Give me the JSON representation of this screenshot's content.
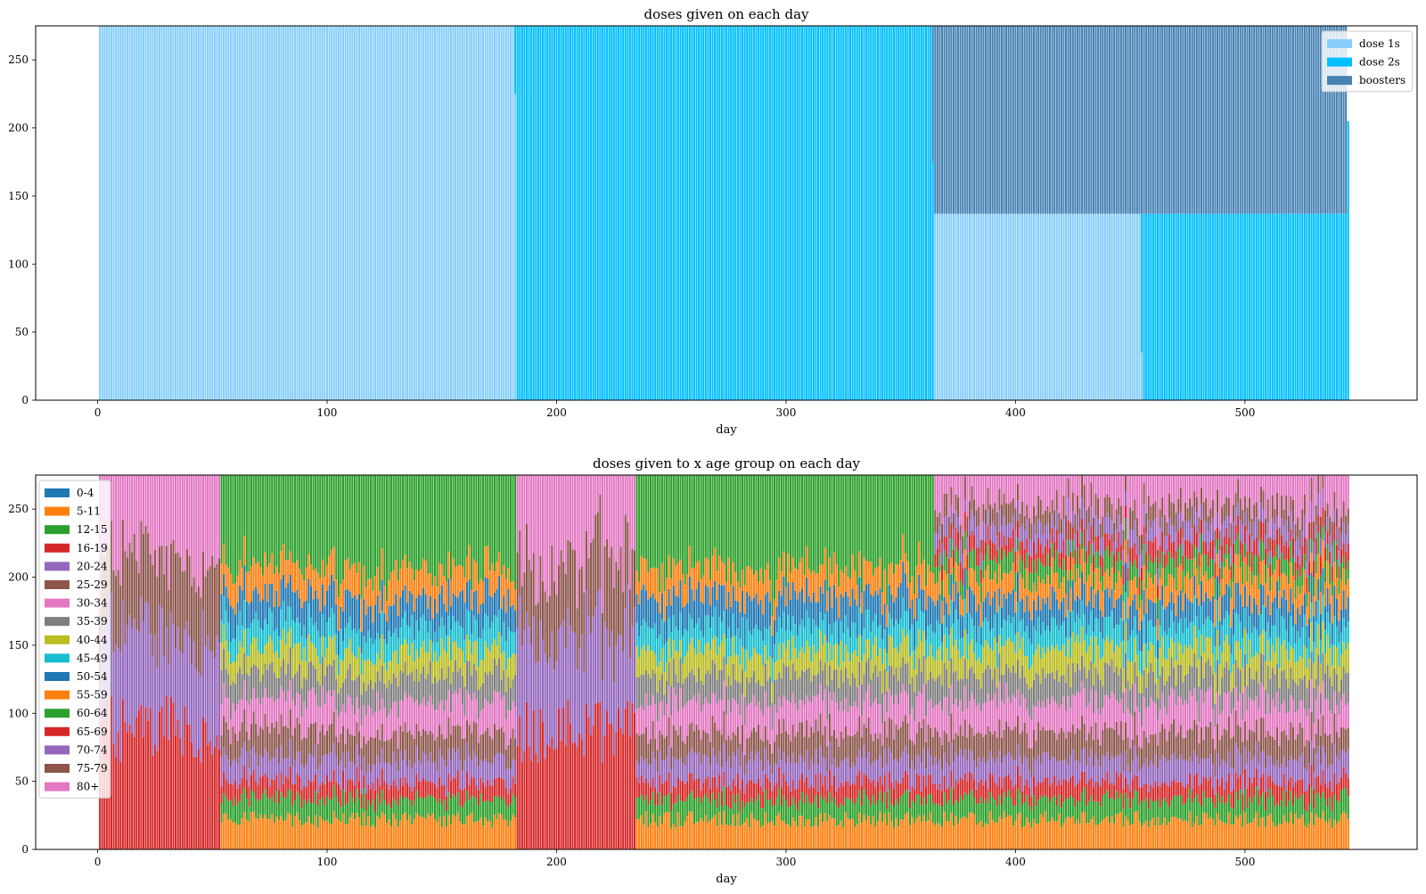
{
  "figure": {
    "background": "#ffffff"
  },
  "chart_data": [
    {
      "type": "bar",
      "stacked": true,
      "title": "doses given on each day",
      "xlabel": "day",
      "ylabel": "",
      "xlim": [
        -27,
        575
      ],
      "ylim": [
        0,
        275
      ],
      "xticks": [
        0,
        100,
        200,
        300,
        400,
        500
      ],
      "yticks": [
        0,
        50,
        100,
        150,
        200,
        250
      ],
      "grid": false,
      "legend_position": "upper right",
      "series": [
        {
          "name": "dose 1s",
          "color": "#87cefa"
        },
        {
          "name": "dose 2s",
          "color": "#00bfff"
        },
        {
          "name": "boosters",
          "color": "#4682b4"
        }
      ],
      "segments": [
        {
          "days": [
            1,
            183
          ],
          "values": {
            "dose 1s": 275,
            "dose 2s": 0,
            "boosters": 0
          }
        },
        {
          "days": [
            183,
            365
          ],
          "values": {
            "dose 1s": 0,
            "dose 2s": 275,
            "boosters": 0
          }
        },
        {
          "days": [
            365,
            456
          ],
          "values": {
            "dose 1s": 137,
            "dose 2s": 0,
            "boosters": 138
          }
        },
        {
          "days": [
            456,
            546
          ],
          "values": {
            "dose 1s": 0,
            "dose 2s": 137,
            "boosters": 138
          }
        }
      ],
      "anomalies": [
        {
          "day": 182,
          "values": {
            "dose 1s": 225,
            "dose 2s": 50,
            "boosters": 0
          }
        },
        {
          "day": 364,
          "values": {
            "dose 1s": 0,
            "dose 2s": 175,
            "boosters": 100
          }
        },
        {
          "day": 455,
          "values": {
            "dose 1s": 35,
            "dose 2s": 102,
            "boosters": 138
          }
        },
        {
          "day": 545,
          "values": {
            "dose 1s": 0,
            "dose 2s": 205,
            "boosters": 0
          }
        }
      ]
    },
    {
      "type": "bar",
      "stacked": true,
      "title": "doses given to x age group on each day",
      "xlabel": "day",
      "ylabel": "",
      "xlim": [
        -27,
        575
      ],
      "ylim": [
        0,
        275
      ],
      "xticks": [
        0,
        100,
        200,
        300,
        400,
        500
      ],
      "yticks": [
        0,
        50,
        100,
        150,
        200,
        250
      ],
      "grid": false,
      "legend_position": "upper left",
      "series": [
        {
          "name": "0-4",
          "color": "#1f77b4"
        },
        {
          "name": "5-11",
          "color": "#ff7f0e"
        },
        {
          "name": "12-15",
          "color": "#2ca02c"
        },
        {
          "name": "16-19",
          "color": "#d62728"
        },
        {
          "name": "20-24",
          "color": "#9467bd"
        },
        {
          "name": "25-29",
          "color": "#8c564b"
        },
        {
          "name": "30-34",
          "color": "#e377c2"
        },
        {
          "name": "35-39",
          "color": "#7f7f7f"
        },
        {
          "name": "40-44",
          "color": "#bcbd22"
        },
        {
          "name": "45-49",
          "color": "#17becf"
        },
        {
          "name": "50-54",
          "color": "#1f77b4"
        },
        {
          "name": "55-59",
          "color": "#ff7f0e"
        },
        {
          "name": "60-64",
          "color": "#2ca02c"
        },
        {
          "name": "65-69",
          "color": "#d62728"
        },
        {
          "name": "70-74",
          "color": "#9467bd"
        },
        {
          "name": "75-79",
          "color": "#8c564b"
        },
        {
          "name": "80+",
          "color": "#e377c2"
        }
      ],
      "phases": [
        {
          "days": [
            1,
            54
          ],
          "groups": [
            "65-69",
            "70-74",
            "75-79",
            "80+"
          ],
          "mean_values": [
            88,
            70,
            55,
            62
          ]
        },
        {
          "days": [
            54,
            183
          ],
          "groups": [
            "5-11",
            "12-15",
            "16-19",
            "20-24",
            "25-29",
            "30-34",
            "35-39",
            "40-44",
            "45-49",
            "50-54",
            "55-59",
            "60-64"
          ],
          "mean_values": [
            22,
            15,
            13,
            17,
            20,
            22,
            20,
            18,
            18,
            22,
            20,
            48
          ]
        },
        {
          "days": [
            183,
            235
          ],
          "groups": [
            "65-69",
            "70-74",
            "75-79",
            "80+"
          ],
          "mean_values": [
            88,
            70,
            55,
            62
          ]
        },
        {
          "days": [
            235,
            365
          ],
          "groups": [
            "5-11",
            "12-15",
            "16-19",
            "20-24",
            "25-29",
            "30-34",
            "35-39",
            "40-44",
            "45-49",
            "50-54",
            "55-59",
            "60-64"
          ],
          "mean_values": [
            22,
            15,
            13,
            17,
            20,
            22,
            20,
            18,
            18,
            22,
            20,
            48
          ]
        },
        {
          "days": [
            365,
            546
          ],
          "groups": [
            "5-11",
            "12-15",
            "16-19",
            "20-24",
            "25-29",
            "30-34",
            "35-39",
            "40-44",
            "45-49",
            "50-54",
            "55-59",
            "60-64",
            "65-69",
            "70-74",
            "75-79",
            "80+"
          ],
          "mean_values": [
            22,
            15,
            13,
            17,
            20,
            22,
            20,
            18,
            18,
            18,
            17,
            13,
            12,
            13,
            14,
            23
          ]
        }
      ]
    }
  ]
}
